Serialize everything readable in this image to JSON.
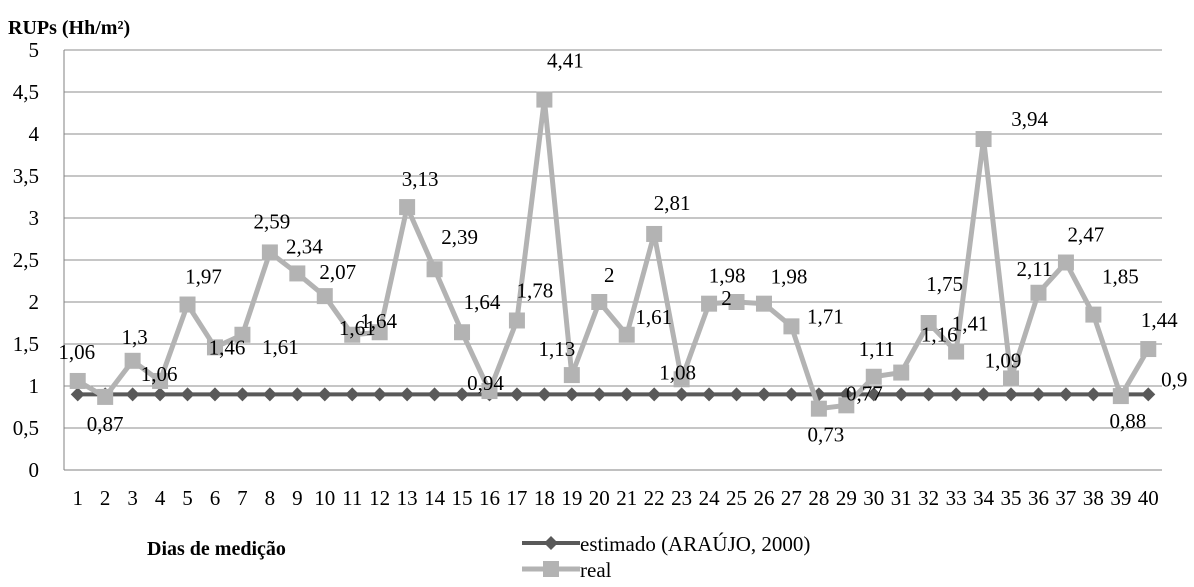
{
  "chart_data": {
    "type": "line",
    "ylabel": "RUPs (Hh/m²)",
    "xlabel": "Dias de medição",
    "ylim": [
      0,
      5
    ],
    "y_ticks": [
      "0",
      "0,5",
      "1",
      "1,5",
      "2",
      "2,5",
      "3",
      "3,5",
      "4",
      "4,5",
      "5"
    ],
    "grid": true,
    "legend_position": "bottom-center",
    "categories": [
      "1",
      "2",
      "3",
      "4",
      "5",
      "6",
      "7",
      "8",
      "9",
      "10",
      "11",
      "12",
      "13",
      "14",
      "15",
      "16",
      "17",
      "18",
      "19",
      "20",
      "21",
      "22",
      "23",
      "24",
      "25",
      "26",
      "27",
      "28",
      "29",
      "30",
      "31",
      "32",
      "33",
      "34",
      "35",
      "36",
      "37",
      "38",
      "39",
      "40"
    ],
    "series": [
      {
        "name": "estimado (ARAÚJO, 2000)",
        "color": "#595959",
        "marker": "diamond",
        "values": [
          0.9,
          0.9,
          0.9,
          0.9,
          0.9,
          0.9,
          0.9,
          0.9,
          0.9,
          0.9,
          0.9,
          0.9,
          0.9,
          0.9,
          0.9,
          0.9,
          0.9,
          0.9,
          0.9,
          0.9,
          0.9,
          0.9,
          0.9,
          0.9,
          0.9,
          0.9,
          0.9,
          0.9,
          0.9,
          0.9,
          0.9,
          0.9,
          0.9,
          0.9,
          0.9,
          0.9,
          0.9,
          0.9,
          0.9,
          0.9
        ],
        "data_labels": [
          {
            "index": 39,
            "text": "0,9"
          }
        ]
      },
      {
        "name": "real",
        "color": "#b3b3b3",
        "marker": "square",
        "values": [
          1.06,
          0.87,
          1.3,
          1.06,
          1.97,
          1.46,
          1.61,
          2.59,
          2.34,
          2.07,
          1.61,
          1.64,
          3.13,
          2.39,
          1.64,
          0.94,
          1.78,
          4.41,
          1.13,
          2,
          1.61,
          2.81,
          1.08,
          1.98,
          2,
          1.98,
          1.71,
          0.73,
          0.77,
          1.11,
          1.16,
          1.75,
          1.41,
          3.94,
          1.09,
          2.11,
          2.47,
          1.85,
          0.88,
          1.44
        ],
        "data_labels": [
          "1,06",
          "0,87",
          "1,3",
          "1,06",
          "1,97",
          "1,46",
          "1,61",
          "2,59",
          "2,34",
          "2,07",
          "1,61",
          "1,64",
          "3,13",
          "2,39",
          "1,64",
          "0,94",
          "1,78",
          "4,41",
          "1,13",
          "2",
          "1,61",
          "2,81",
          "1,08",
          "1,98",
          "2",
          "1,98",
          "1,71",
          "0,73",
          "0,77",
          "1,11",
          "1,16",
          "1,75",
          "1,41",
          "3,94",
          "1,09",
          "2,11",
          "2,47",
          "1,85",
          "0,88",
          "1,44"
        ]
      }
    ]
  }
}
